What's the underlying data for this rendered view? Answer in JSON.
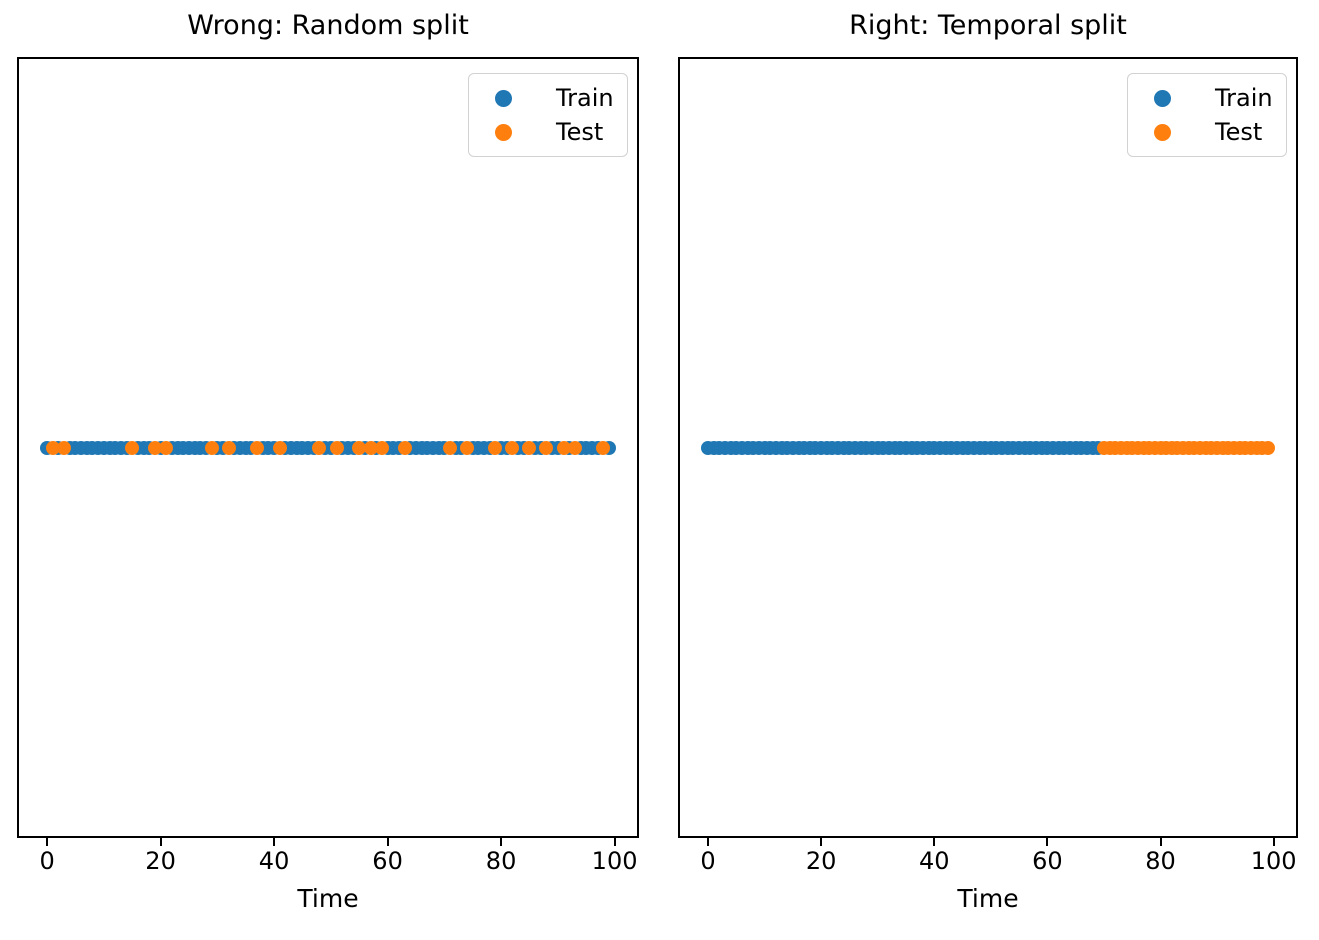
{
  "figure": {
    "background": "#ffffff"
  },
  "colors": {
    "train": "#1f77b4",
    "test": "#ff7f0e",
    "spine": "#000000",
    "legend_border": "#d2d2d2"
  },
  "chart_data": [
    {
      "type": "scatter",
      "title": "Wrong: Random split",
      "xlabel": "Time",
      "xticks": [
        0,
        20,
        40,
        60,
        80,
        100
      ],
      "xlim": [
        -4.95,
        103.95
      ],
      "yticks": [],
      "y_all": 0,
      "grid": false,
      "legend_position": "upper right",
      "series": [
        {
          "name": "Train",
          "color": "#1f77b4",
          "x": [
            0,
            2,
            4,
            5,
            6,
            7,
            8,
            9,
            10,
            11,
            12,
            13,
            14,
            16,
            17,
            18,
            20,
            22,
            23,
            24,
            25,
            26,
            27,
            28,
            30,
            31,
            33,
            34,
            35,
            36,
            38,
            39,
            40,
            42,
            43,
            44,
            45,
            46,
            47,
            49,
            50,
            52,
            53,
            54,
            56,
            58,
            60,
            61,
            62,
            64,
            65,
            66,
            67,
            68,
            69,
            70,
            72,
            73,
            75,
            76,
            77,
            78,
            80,
            81,
            83,
            84,
            86,
            87,
            89,
            90,
            92,
            94,
            95,
            96,
            97,
            99
          ]
        },
        {
          "name": "Test",
          "color": "#ff7f0e",
          "x": [
            1,
            3,
            15,
            19,
            21,
            29,
            32,
            37,
            41,
            48,
            51,
            55,
            57,
            59,
            63,
            71,
            74,
            79,
            82,
            85,
            88,
            91,
            93,
            98
          ]
        }
      ]
    },
    {
      "type": "scatter",
      "title": "Right: Temporal split",
      "xlabel": "Time",
      "xticks": [
        0,
        20,
        40,
        60,
        80,
        100
      ],
      "xlim": [
        -4.95,
        103.95
      ],
      "yticks": [],
      "y_all": 0,
      "grid": false,
      "legend_position": "upper right",
      "series": [
        {
          "name": "Train",
          "color": "#1f77b4",
          "x": [
            0,
            1,
            2,
            3,
            4,
            5,
            6,
            7,
            8,
            9,
            10,
            11,
            12,
            13,
            14,
            15,
            16,
            17,
            18,
            19,
            20,
            21,
            22,
            23,
            24,
            25,
            26,
            27,
            28,
            29,
            30,
            31,
            32,
            33,
            34,
            35,
            36,
            37,
            38,
            39,
            40,
            41,
            42,
            43,
            44,
            45,
            46,
            47,
            48,
            49,
            50,
            51,
            52,
            53,
            54,
            55,
            56,
            57,
            58,
            59,
            60,
            61,
            62,
            63,
            64,
            65,
            66,
            67,
            68,
            69
          ]
        },
        {
          "name": "Test",
          "color": "#ff7f0e",
          "x": [
            70,
            71,
            72,
            73,
            74,
            75,
            76,
            77,
            78,
            79,
            80,
            81,
            82,
            83,
            84,
            85,
            86,
            87,
            88,
            89,
            90,
            91,
            92,
            93,
            94,
            95,
            96,
            97,
            98,
            99
          ]
        }
      ]
    }
  ]
}
